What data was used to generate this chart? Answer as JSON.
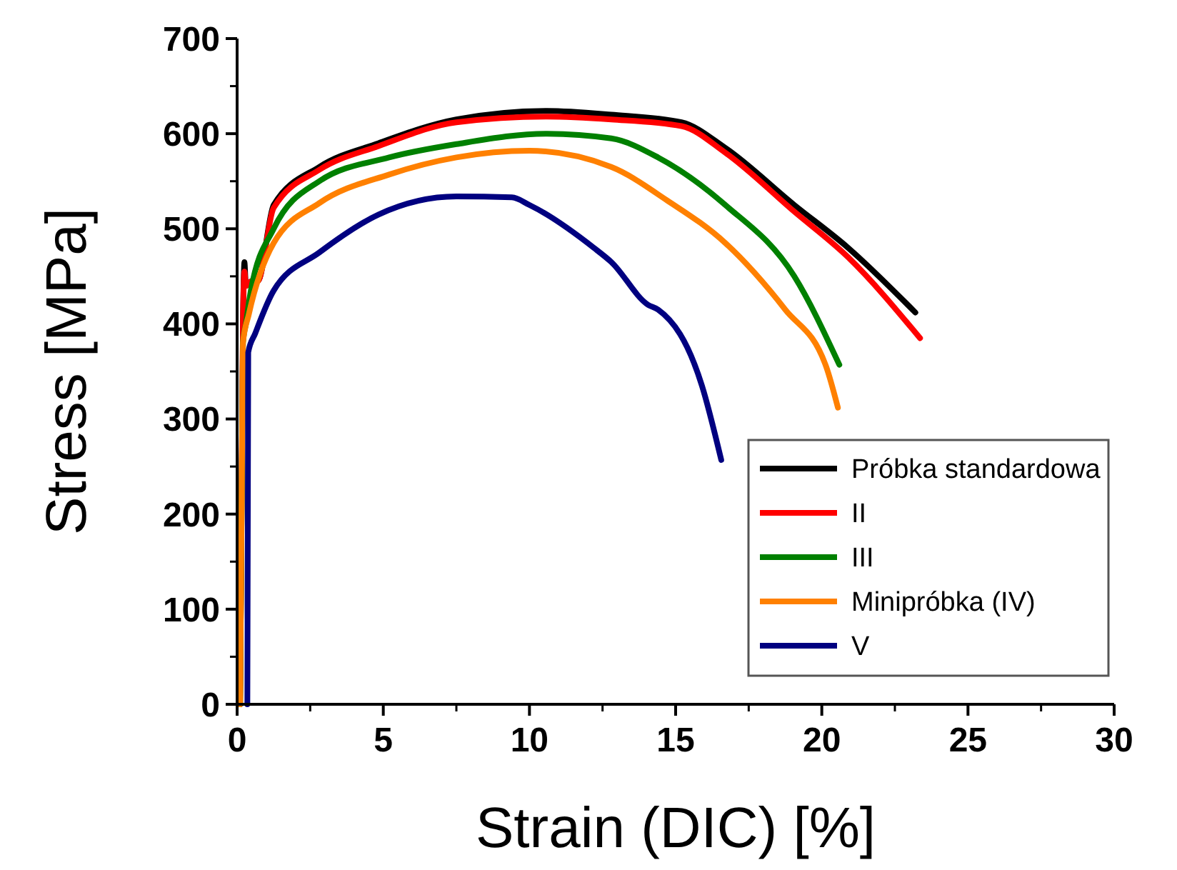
{
  "chart_data": {
    "type": "line",
    "xlabel": "Strain (DIC) [%]",
    "ylabel": "Stress [MPa]",
    "xlim": [
      0,
      30
    ],
    "xticks": [
      0,
      5,
      10,
      15,
      20,
      25,
      30
    ],
    "ylim": [
      0,
      700
    ],
    "yticks": [
      0,
      100,
      200,
      300,
      400,
      500,
      600,
      700
    ],
    "grid": false,
    "legend": "right",
    "line_style": "solid",
    "series": [
      {
        "name": "Próbka standardowa",
        "color": "#000000",
        "x": [
          0.1,
          0.2,
          0.25,
          0.3,
          0.5,
          0.7,
          1.25,
          2.81,
          4.84,
          7.5,
          10.6,
          12.8,
          15.2,
          16.7,
          19.06,
          20.9,
          23.2
        ],
        "values": [
          0,
          400,
          465,
          440,
          445,
          445,
          525,
          565,
          590,
          615,
          624,
          620,
          612,
          585,
          525,
          480,
          412
        ]
      },
      {
        "name": "II",
        "color": "#ff0000",
        "x": [
          0.1,
          0.2,
          0.25,
          0.3,
          0.5,
          0.7,
          1.25,
          2.81,
          4.84,
          7.5,
          10.6,
          12.8,
          15.2,
          16.7,
          19.06,
          20.9,
          23.36
        ],
        "values": [
          0,
          400,
          455,
          440,
          445,
          445,
          522,
          562,
          587,
          612,
          618,
          615,
          608,
          580,
          518,
          470,
          385
        ]
      },
      {
        "name": "III",
        "color": "#008000",
        "x": [
          0.1,
          0.2,
          0.3,
          0.47,
          1.25,
          2.81,
          5.2,
          7.5,
          10.6,
          12.8,
          14.4,
          16.7,
          19.06,
          20.6
        ],
        "values": [
          0,
          380,
          400,
          435,
          500,
          550,
          575,
          589,
          600,
          595,
          575,
          525,
          450,
          357
        ]
      },
      {
        "name": "Minipróbka (IV)",
        "color": "#ff8000",
        "x": [
          0.1,
          0.2,
          0.4,
          1.25,
          2.81,
          5.2,
          7.5,
          10,
          12.8,
          14.7,
          16.7,
          18.75,
          20.15,
          20.55
        ],
        "values": [
          0,
          380,
          410,
          485,
          527,
          557,
          575,
          582,
          565,
          530,
          485,
          415,
          355,
          312
        ]
      },
      {
        "name": "V",
        "color": "#000080",
        "x": [
          0.35,
          0.38,
          0.62,
          1.25,
          2.81,
          4.84,
          7.5,
          9.4,
          10,
          12.2,
          12.8,
          14.06,
          14.4,
          15.9,
          16.56
        ],
        "values": [
          0,
          370,
          390,
          435,
          475,
          515,
          534,
          533,
          525,
          480,
          465,
          420,
          415,
          335,
          257
        ]
      }
    ]
  }
}
